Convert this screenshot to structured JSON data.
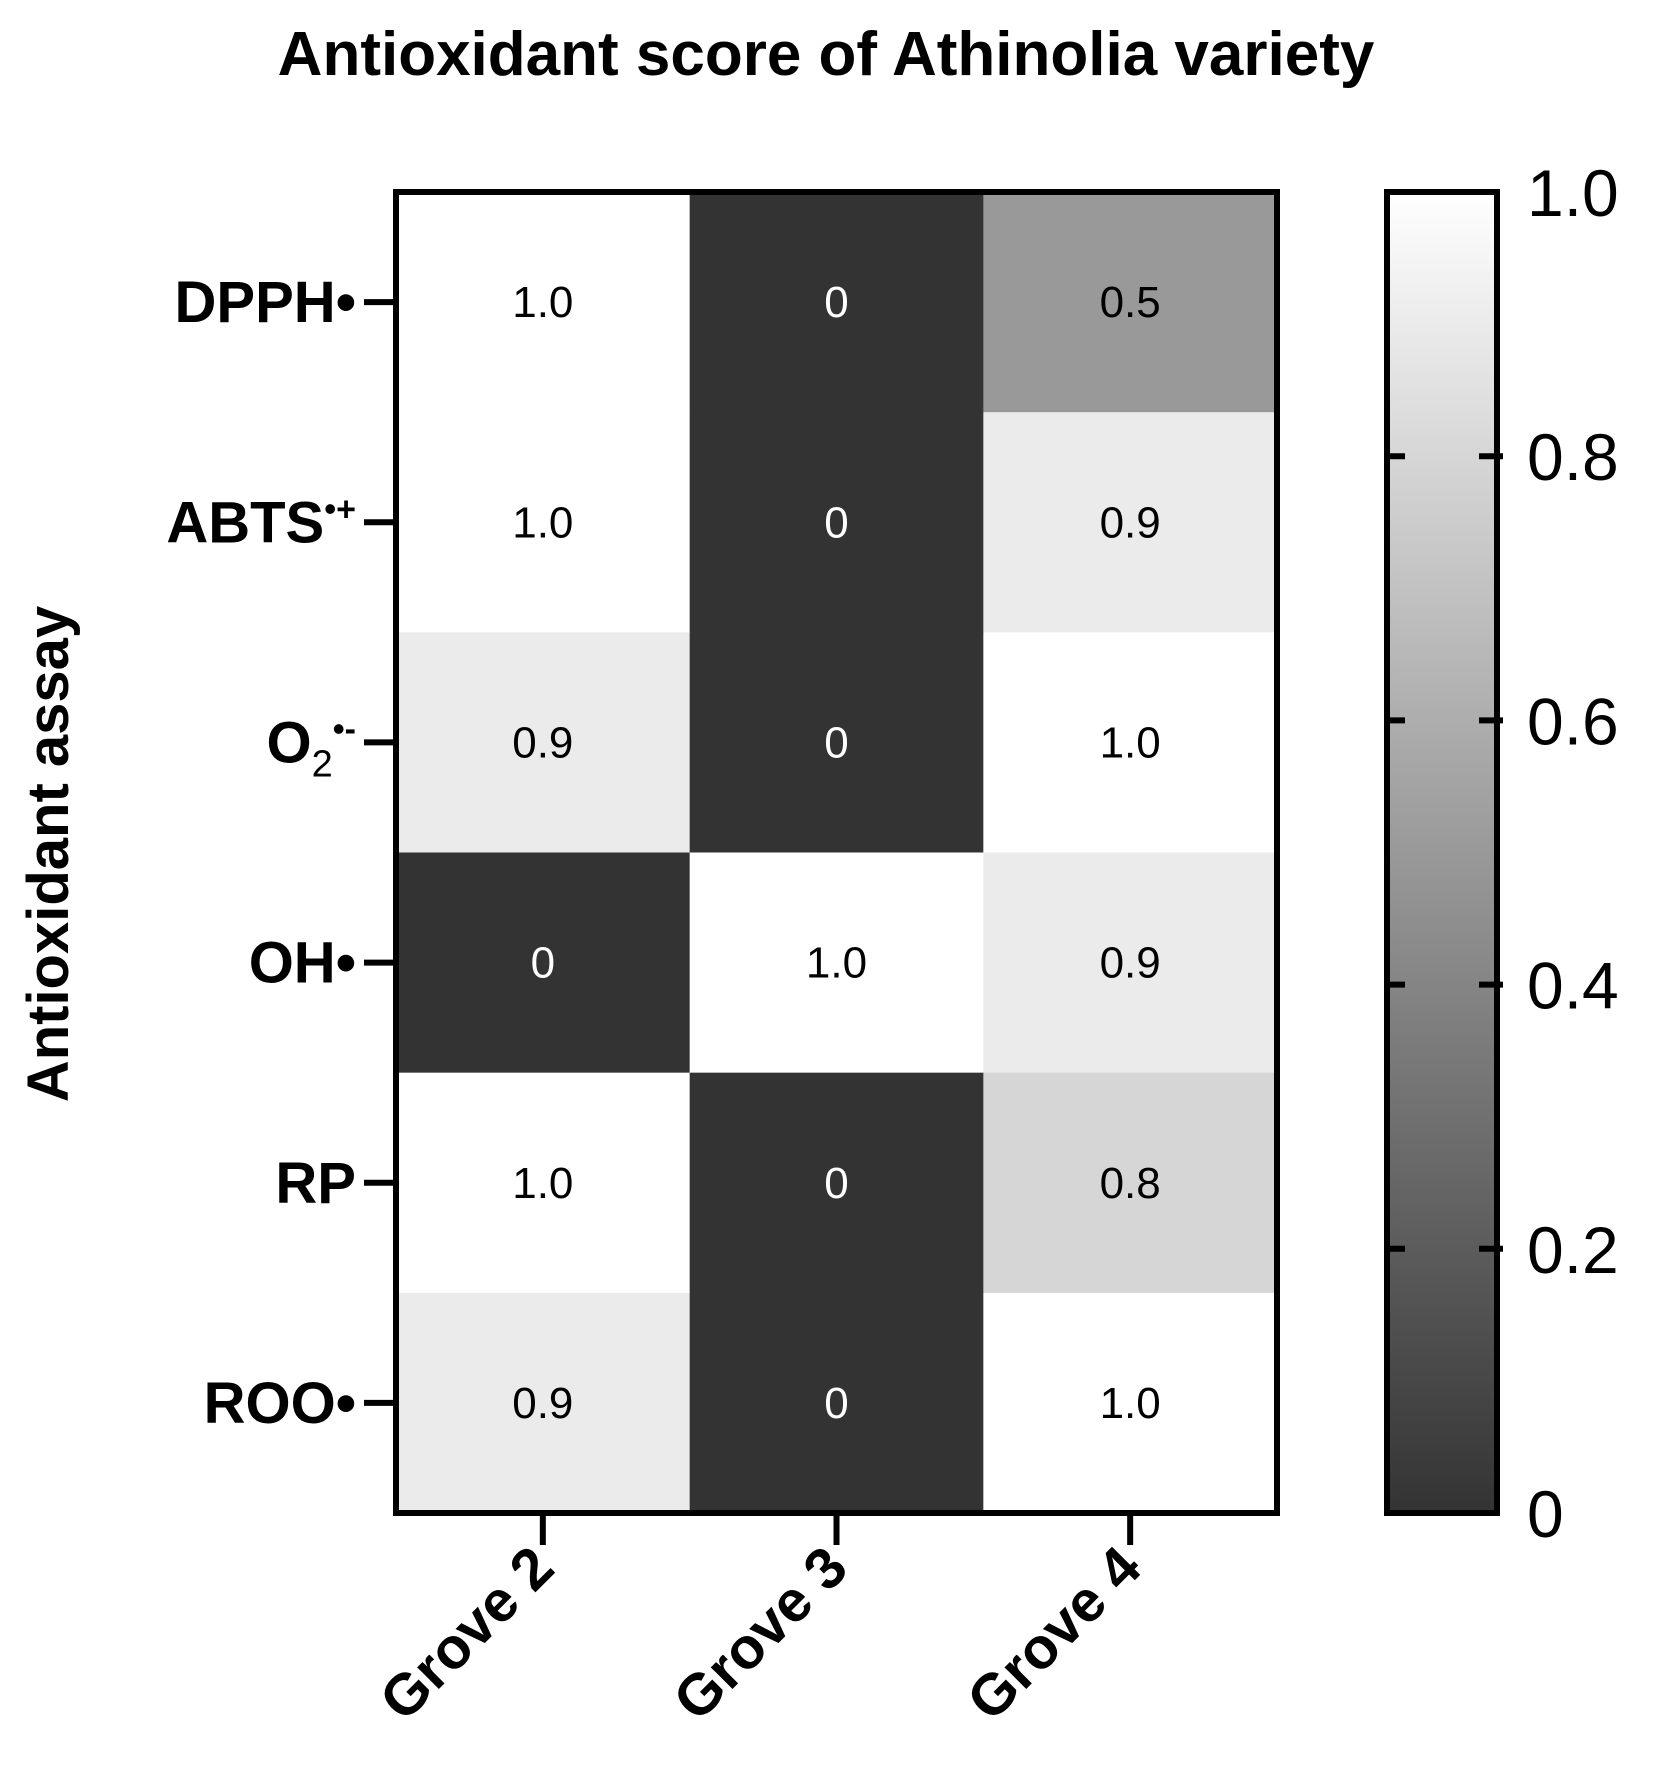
{
  "chart_data": {
    "type": "heatmap",
    "title": "Antioxidant score of Athinolia variety",
    "ylabel": "Antioxidant assay",
    "xlabel": "",
    "rows": [
      {
        "id": "dpph",
        "label": "DPPH•",
        "parts": [
          {
            "t": "DPPH•",
            "s": "normal"
          }
        ]
      },
      {
        "id": "abts",
        "label": "ABTS•+",
        "parts": [
          {
            "t": "ABTS",
            "s": "normal"
          },
          {
            "t": "•+",
            "s": "sup"
          }
        ]
      },
      {
        "id": "o2",
        "label": "O2•-",
        "parts": [
          {
            "t": "O",
            "s": "normal"
          },
          {
            "t": "2",
            "s": "sub"
          },
          {
            "t": "•-",
            "s": "sup"
          }
        ]
      },
      {
        "id": "oh",
        "label": "OH•",
        "parts": [
          {
            "t": "OH•",
            "s": "normal"
          }
        ]
      },
      {
        "id": "rp",
        "label": "RP",
        "parts": [
          {
            "t": "RP",
            "s": "normal"
          }
        ]
      },
      {
        "id": "roo",
        "label": "ROO•",
        "parts": [
          {
            "t": "ROO•",
            "s": "normal"
          }
        ]
      }
    ],
    "columns": [
      "Grove 2",
      "Grove 3",
      "Grove 4"
    ],
    "values": [
      [
        1.0,
        0,
        0.5
      ],
      [
        1.0,
        0,
        0.9
      ],
      [
        0.9,
        0,
        1.0
      ],
      [
        0,
        1.0,
        0.9
      ],
      [
        1.0,
        0,
        0.8
      ],
      [
        0.9,
        0,
        1.0
      ]
    ],
    "value_labels": [
      [
        "1.0",
        "0",
        "0.5"
      ],
      [
        "1.0",
        "0",
        "0.9"
      ],
      [
        "0.9",
        "0",
        "1.0"
      ],
      [
        "0",
        "1.0",
        "0.9"
      ],
      [
        "1.0",
        "0",
        "0.8"
      ],
      [
        "0.9",
        "0",
        "1.0"
      ]
    ],
    "colorbar": {
      "range": [
        0,
        1
      ],
      "tick_values": [
        0,
        0.2,
        0.4,
        0.6,
        0.8,
        1.0
      ],
      "tick_labels": [
        "0",
        "0.2",
        "0.4",
        "0.6",
        "0.8",
        "1.0"
      ],
      "color_low": "#333333",
      "color_high": "#ffffff"
    }
  }
}
